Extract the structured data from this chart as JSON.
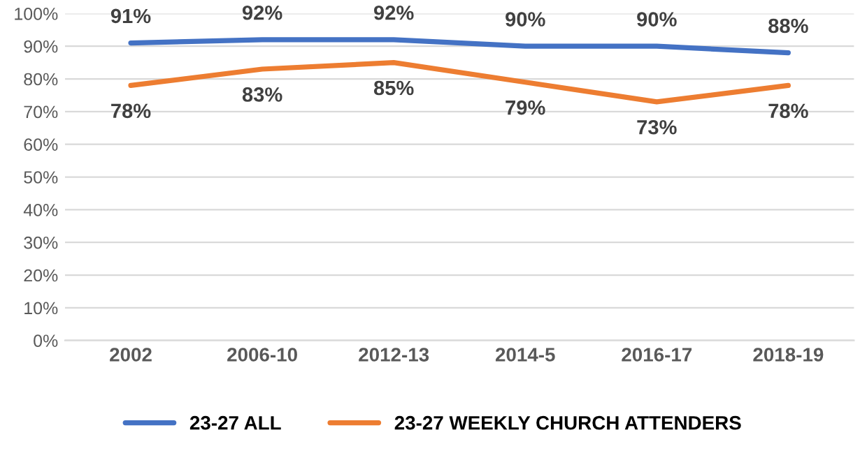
{
  "chart_data": {
    "type": "line",
    "categories": [
      "2002",
      "2006-10",
      "2012-13",
      "2014-5",
      "2016-17",
      "2018-19"
    ],
    "series": [
      {
        "name": "23-27 ALL",
        "color": "#4472c4",
        "values": [
          91,
          92,
          92,
          90,
          90,
          88
        ],
        "value_labels": [
          "91%",
          "92%",
          "92%",
          "90%",
          "90%",
          "88%"
        ]
      },
      {
        "name": "23-27 WEEKLY CHURCH ATTENDERS",
        "color": "#ed7d31",
        "values": [
          78,
          83,
          85,
          79,
          73,
          78
        ],
        "value_labels": [
          "78%",
          "83%",
          "85%",
          "79%",
          "73%",
          "78%"
        ]
      }
    ],
    "ylim": [
      0,
      100
    ],
    "yticks": [
      {
        "value": 0,
        "label": "0%"
      },
      {
        "value": 10,
        "label": "10%"
      },
      {
        "value": 20,
        "label": "20%"
      },
      {
        "value": 30,
        "label": "30%"
      },
      {
        "value": 40,
        "label": "40%"
      },
      {
        "value": 50,
        "label": "50%"
      },
      {
        "value": 60,
        "label": "60%"
      },
      {
        "value": 70,
        "label": "70%"
      },
      {
        "value": 80,
        "label": "80%"
      },
      {
        "value": 90,
        "label": "90%"
      },
      {
        "value": 100,
        "label": "100%"
      }
    ],
    "grid": "y",
    "legend": "bottom",
    "marker": "none",
    "line_style": "solid"
  }
}
